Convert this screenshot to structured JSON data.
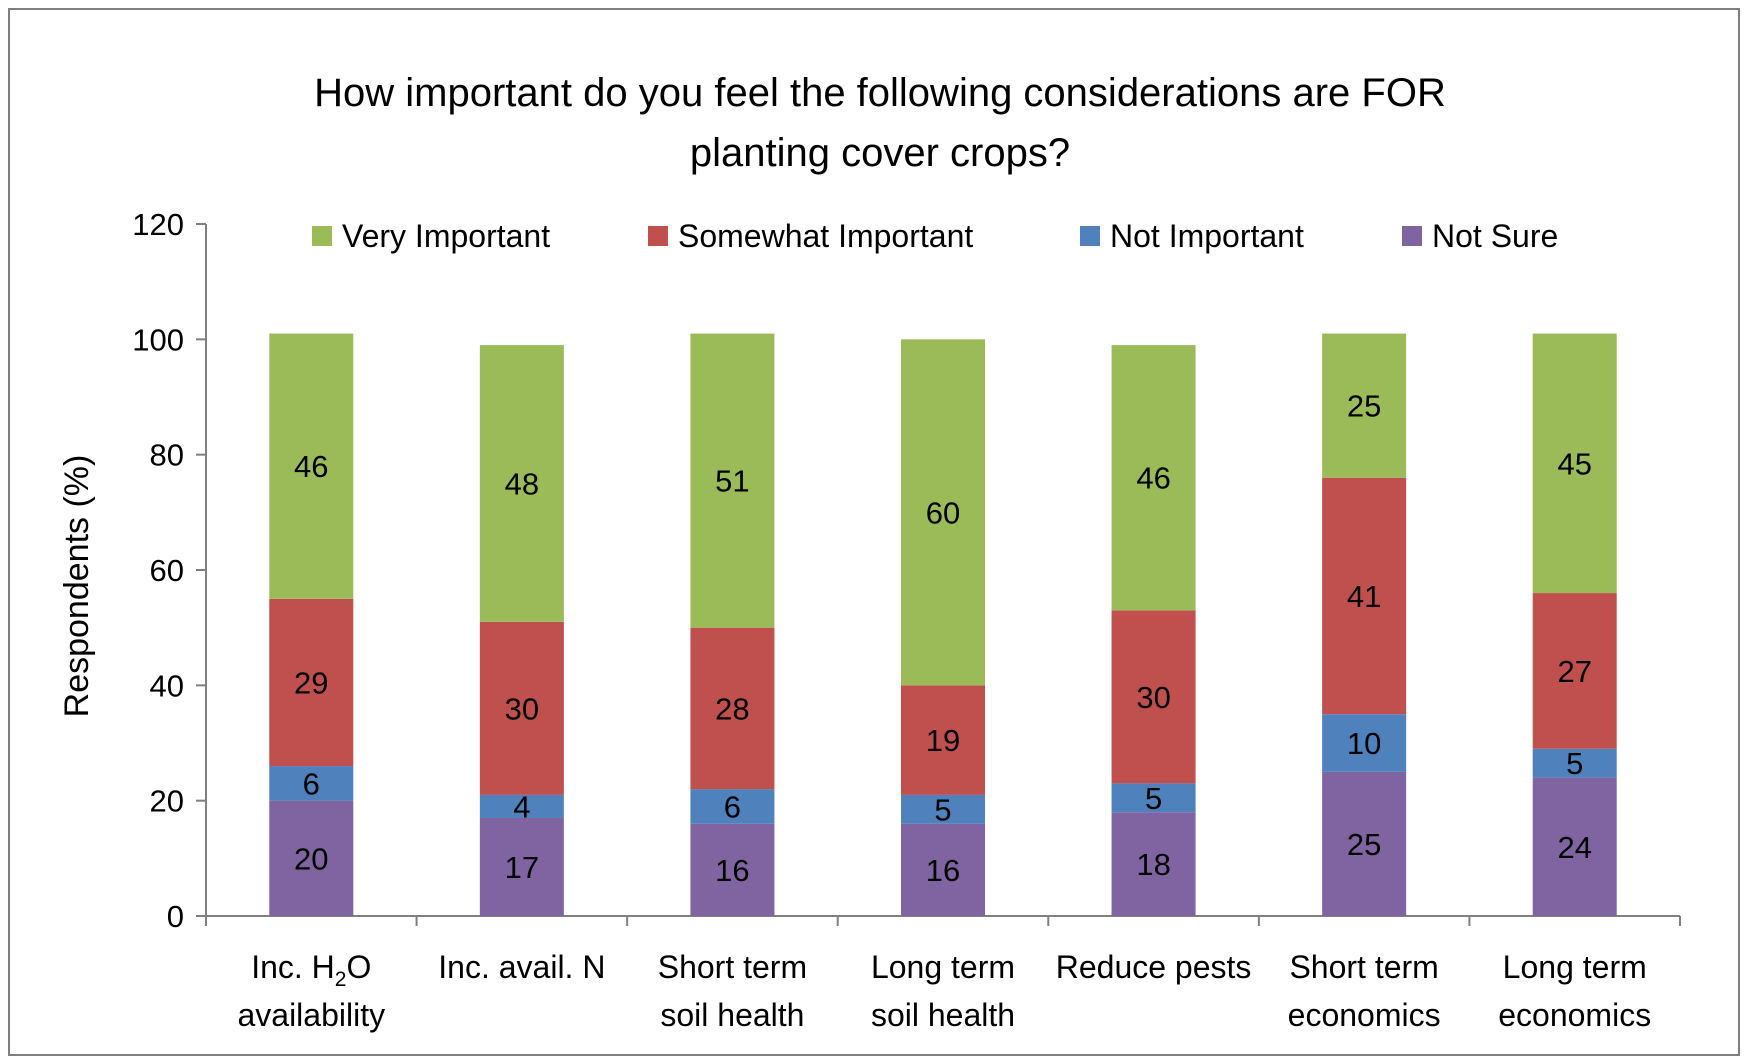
{
  "chart_data": {
    "type": "bar",
    "stacked": true,
    "title_lines": [
      "How important do you feel the following considerations are FOR",
      "planting cover crops?"
    ],
    "ylabel": "Respondents (%)",
    "ylim": [
      0,
      120
    ],
    "yticks": [
      "0",
      "20",
      "40",
      "60",
      "80",
      "100",
      "120"
    ],
    "legend_position": "top",
    "categories": [
      {
        "line1": "Inc. H",
        "line1_sub": "2",
        "line1_tail": "O",
        "line2": "availability"
      },
      {
        "line1": "Inc. avail. N",
        "line2": ""
      },
      {
        "line1": "Short term",
        "line2": "soil health"
      },
      {
        "line1": "Long term",
        "line2": "soil health"
      },
      {
        "line1": "Reduce pests",
        "line2": ""
      },
      {
        "line1": "Short term",
        "line2": "economics"
      },
      {
        "line1": "Long term",
        "line2": "economics"
      }
    ],
    "series": [
      {
        "name": "Not Sure",
        "color": "#8064a2",
        "values": [
          20,
          17,
          16,
          16,
          18,
          25,
          24
        ],
        "labels": [
          "20",
          "17",
          "16",
          "16",
          "18",
          "25",
          "24"
        ]
      },
      {
        "name": "Not Important",
        "color": "#4f81bd",
        "values": [
          6,
          4,
          6,
          5,
          5,
          10,
          5
        ],
        "labels": [
          "6",
          "4",
          "6",
          "5",
          "5",
          "10",
          "5"
        ]
      },
      {
        "name": "Somewhat Important",
        "color": "#c0504d",
        "values": [
          29,
          30,
          28,
          19,
          30,
          41,
          27
        ],
        "labels": [
          "29",
          "30",
          "28",
          "19",
          "30",
          "41",
          "27"
        ]
      },
      {
        "name": "Very Important",
        "color": "#9bbb59",
        "values": [
          46,
          48,
          51,
          60,
          46,
          25,
          45
        ],
        "labels": [
          "46",
          "48",
          "51",
          "60",
          "46",
          "25",
          "45"
        ]
      }
    ],
    "legend_order": [
      "Very Important",
      "Somewhat Important",
      "Not Important",
      "Not Sure"
    ]
  }
}
